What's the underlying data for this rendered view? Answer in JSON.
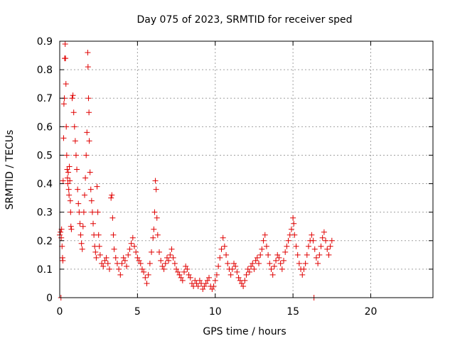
{
  "chart_data": {
    "type": "scatter",
    "title": "Day 075 of 2023, SRMTID for receiver sped",
    "xlabel": "GPS time / hours",
    "ylabel": "SRMTID / TECUs",
    "xlim": [
      0,
      24
    ],
    "ylim": [
      0,
      0.9
    ],
    "xticks": [
      0,
      5,
      10,
      15,
      20
    ],
    "yticks": [
      0,
      0.1,
      0.2,
      0.3,
      0.4,
      0.5,
      0.6,
      0.7,
      0.8,
      0.9
    ],
    "xtick_labels": [
      "0",
      "5",
      "10",
      "15",
      "20"
    ],
    "ytick_labels": [
      "0",
      "0.1",
      "0.2",
      "0.3",
      "0.4",
      "0.5",
      "0.6",
      "0.7",
      "0.8",
      "0.9"
    ],
    "grid": true,
    "marker": "+",
    "color": "#e00000",
    "series": [
      {
        "name": "SRMTID",
        "points": [
          [
            0.0,
            0.22
          ],
          [
            0.05,
            0.23
          ],
          [
            0.08,
            0.0
          ],
          [
            0.1,
            0.21
          ],
          [
            0.12,
            0.24
          ],
          [
            0.15,
            0.18
          ],
          [
            0.18,
            0.14
          ],
          [
            0.2,
            0.13
          ],
          [
            0.22,
            0.41
          ],
          [
            0.25,
            0.56
          ],
          [
            0.27,
            0.68
          ],
          [
            0.3,
            0.7
          ],
          [
            0.32,
            0.84
          ],
          [
            0.35,
            0.89
          ],
          [
            0.37,
            0.84
          ],
          [
            0.4,
            0.75
          ],
          [
            0.42,
            0.6
          ],
          [
            0.45,
            0.5
          ],
          [
            0.48,
            0.45
          ],
          [
            0.5,
            0.42
          ],
          [
            0.52,
            0.4
          ],
          [
            0.55,
            0.44
          ],
          [
            0.58,
            0.38
          ],
          [
            0.6,
            0.36
          ],
          [
            0.62,
            0.46
          ],
          [
            0.65,
            0.41
          ],
          [
            0.68,
            0.34
          ],
          [
            0.7,
            0.3
          ],
          [
            0.72,
            0.25
          ],
          [
            0.75,
            0.24
          ],
          [
            0.8,
            0.7
          ],
          [
            0.85,
            0.71
          ],
          [
            0.9,
            0.65
          ],
          [
            0.95,
            0.6
          ],
          [
            1.0,
            0.55
          ],
          [
            1.05,
            0.5
          ],
          [
            1.1,
            0.45
          ],
          [
            1.15,
            0.38
          ],
          [
            1.2,
            0.33
          ],
          [
            1.25,
            0.3
          ],
          [
            1.3,
            0.26
          ],
          [
            1.35,
            0.22
          ],
          [
            1.4,
            0.19
          ],
          [
            1.45,
            0.17
          ],
          [
            1.5,
            0.25
          ],
          [
            1.55,
            0.3
          ],
          [
            1.6,
            0.36
          ],
          [
            1.65,
            0.42
          ],
          [
            1.7,
            0.5
          ],
          [
            1.75,
            0.58
          ],
          [
            1.8,
            0.86
          ],
          [
            1.82,
            0.81
          ],
          [
            1.85,
            0.7
          ],
          [
            1.88,
            0.65
          ],
          [
            1.9,
            0.55
          ],
          [
            1.95,
            0.44
          ],
          [
            2.0,
            0.38
          ],
          [
            2.05,
            0.34
          ],
          [
            2.1,
            0.3
          ],
          [
            2.15,
            0.26
          ],
          [
            2.2,
            0.22
          ],
          [
            2.25,
            0.18
          ],
          [
            2.3,
            0.16
          ],
          [
            2.35,
            0.14
          ],
          [
            2.4,
            0.39
          ],
          [
            2.45,
            0.3
          ],
          [
            2.5,
            0.22
          ],
          [
            2.55,
            0.18
          ],
          [
            2.6,
            0.15
          ],
          [
            2.7,
            0.12
          ],
          [
            2.8,
            0.11
          ],
          [
            2.9,
            0.13
          ],
          [
            3.0,
            0.14
          ],
          [
            3.1,
            0.12
          ],
          [
            3.2,
            0.1
          ],
          [
            3.3,
            0.35
          ],
          [
            3.35,
            0.36
          ],
          [
            3.4,
            0.28
          ],
          [
            3.45,
            0.22
          ],
          [
            3.5,
            0.17
          ],
          [
            3.6,
            0.14
          ],
          [
            3.7,
            0.12
          ],
          [
            3.8,
            0.1
          ],
          [
            3.9,
            0.08
          ],
          [
            4.0,
            0.12
          ],
          [
            4.1,
            0.14
          ],
          [
            4.2,
            0.13
          ],
          [
            4.3,
            0.11
          ],
          [
            4.4,
            0.15
          ],
          [
            4.5,
            0.17
          ],
          [
            4.6,
            0.19
          ],
          [
            4.7,
            0.21
          ],
          [
            4.8,
            0.18
          ],
          [
            4.9,
            0.16
          ],
          [
            5.0,
            0.14
          ],
          [
            5.1,
            0.13
          ],
          [
            5.2,
            0.12
          ],
          [
            5.3,
            0.1
          ],
          [
            5.4,
            0.09
          ],
          [
            5.5,
            0.07
          ],
          [
            5.6,
            0.05
          ],
          [
            5.7,
            0.08
          ],
          [
            5.8,
            0.12
          ],
          [
            5.9,
            0.16
          ],
          [
            6.0,
            0.21
          ],
          [
            6.05,
            0.24
          ],
          [
            6.1,
            0.3
          ],
          [
            6.15,
            0.41
          ],
          [
            6.2,
            0.38
          ],
          [
            6.25,
            0.28
          ],
          [
            6.3,
            0.22
          ],
          [
            6.4,
            0.16
          ],
          [
            6.5,
            0.13
          ],
          [
            6.6,
            0.11
          ],
          [
            6.7,
            0.1
          ],
          [
            6.8,
            0.12
          ],
          [
            6.9,
            0.14
          ],
          [
            7.0,
            0.13
          ],
          [
            7.1,
            0.15
          ],
          [
            7.2,
            0.17
          ],
          [
            7.3,
            0.14
          ],
          [
            7.4,
            0.12
          ],
          [
            7.5,
            0.1
          ],
          [
            7.6,
            0.09
          ],
          [
            7.7,
            0.08
          ],
          [
            7.8,
            0.07
          ],
          [
            7.9,
            0.06
          ],
          [
            8.0,
            0.09
          ],
          [
            8.1,
            0.11
          ],
          [
            8.2,
            0.1
          ],
          [
            8.3,
            0.08
          ],
          [
            8.4,
            0.07
          ],
          [
            8.5,
            0.05
          ],
          [
            8.6,
            0.04
          ],
          [
            8.7,
            0.06
          ],
          [
            8.8,
            0.05
          ],
          [
            8.9,
            0.04
          ],
          [
            9.0,
            0.06
          ],
          [
            9.1,
            0.05
          ],
          [
            9.2,
            0.03
          ],
          [
            9.3,
            0.04
          ],
          [
            9.4,
            0.05
          ],
          [
            9.5,
            0.06
          ],
          [
            9.6,
            0.07
          ],
          [
            9.7,
            0.04
          ],
          [
            9.8,
            0.03
          ],
          [
            9.9,
            0.04
          ],
          [
            10.0,
            0.06
          ],
          [
            10.1,
            0.08
          ],
          [
            10.2,
            0.11
          ],
          [
            10.3,
            0.14
          ],
          [
            10.4,
            0.17
          ],
          [
            10.5,
            0.21
          ],
          [
            10.6,
            0.18
          ],
          [
            10.7,
            0.15
          ],
          [
            10.8,
            0.12
          ],
          [
            10.9,
            0.1
          ],
          [
            11.0,
            0.08
          ],
          [
            11.1,
            0.1
          ],
          [
            11.2,
            0.12
          ],
          [
            11.3,
            0.11
          ],
          [
            11.4,
            0.09
          ],
          [
            11.5,
            0.07
          ],
          [
            11.6,
            0.06
          ],
          [
            11.7,
            0.05
          ],
          [
            11.8,
            0.04
          ],
          [
            11.9,
            0.06
          ],
          [
            12.0,
            0.08
          ],
          [
            12.1,
            0.1
          ],
          [
            12.2,
            0.09
          ],
          [
            12.3,
            0.11
          ],
          [
            12.4,
            0.12
          ],
          [
            12.5,
            0.1
          ],
          [
            12.6,
            0.13
          ],
          [
            12.7,
            0.14
          ],
          [
            12.8,
            0.12
          ],
          [
            12.9,
            0.15
          ],
          [
            13.0,
            0.17
          ],
          [
            13.1,
            0.2
          ],
          [
            13.2,
            0.22
          ],
          [
            13.3,
            0.18
          ],
          [
            13.4,
            0.15
          ],
          [
            13.5,
            0.12
          ],
          [
            13.6,
            0.1
          ],
          [
            13.7,
            0.08
          ],
          [
            13.8,
            0.11
          ],
          [
            13.9,
            0.13
          ],
          [
            14.0,
            0.15
          ],
          [
            14.1,
            0.14
          ],
          [
            14.2,
            0.12
          ],
          [
            14.3,
            0.1
          ],
          [
            14.4,
            0.13
          ],
          [
            14.5,
            0.16
          ],
          [
            14.6,
            0.18
          ],
          [
            14.7,
            0.2
          ],
          [
            14.8,
            0.22
          ],
          [
            14.9,
            0.24
          ],
          [
            15.0,
            0.28
          ],
          [
            15.05,
            0.26
          ],
          [
            15.1,
            0.22
          ],
          [
            15.2,
            0.18
          ],
          [
            15.3,
            0.15
          ],
          [
            15.4,
            0.12
          ],
          [
            15.5,
            0.1
          ],
          [
            15.6,
            0.08
          ],
          [
            15.7,
            0.1
          ],
          [
            15.8,
            0.12
          ],
          [
            15.9,
            0.15
          ],
          [
            16.0,
            0.18
          ],
          [
            16.1,
            0.2
          ],
          [
            16.2,
            0.22
          ],
          [
            16.3,
            0.2
          ],
          [
            16.35,
            0.0
          ],
          [
            16.4,
            0.17
          ],
          [
            16.5,
            0.14
          ],
          [
            16.6,
            0.12
          ],
          [
            16.7,
            0.15
          ],
          [
            16.8,
            0.18
          ],
          [
            16.9,
            0.21
          ],
          [
            17.0,
            0.23
          ],
          [
            17.1,
            0.2
          ],
          [
            17.2,
            0.17
          ],
          [
            17.3,
            0.15
          ],
          [
            17.4,
            0.18
          ],
          [
            17.5,
            0.2
          ]
        ]
      }
    ]
  }
}
